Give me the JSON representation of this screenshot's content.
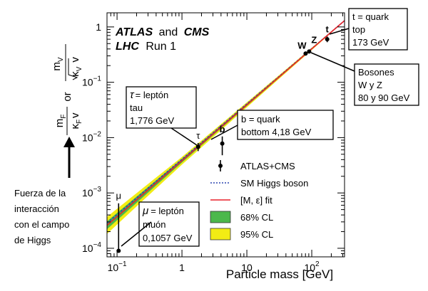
{
  "chart_data": {
    "type": "scatter",
    "xscale": "log",
    "yscale": "log",
    "xlim": [
      0.07,
      320
    ],
    "ylim": [
      7e-05,
      1.8
    ],
    "xlabel": "Particle mass [GeV]",
    "ylabel_parts": {
      "left_num": "m",
      "left_num_sub": "F",
      "left_den": "κ",
      "left_den_sub": "F",
      "left_den_rest": "v",
      "or": "or",
      "right_num": "m",
      "right_num_sub": "V",
      "right_den_root": "κ",
      "right_den_root_sub": "V",
      "right_den_rest": "v"
    },
    "x_ticks": [
      {
        "value": 0.1,
        "label_base": "10",
        "label_exp": "−1"
      },
      {
        "value": 1,
        "label_base": "1",
        "label_exp": ""
      },
      {
        "value": 10,
        "label_base": "10",
        "label_exp": ""
      },
      {
        "value": 100,
        "label_base": "10",
        "label_exp": "2"
      }
    ],
    "y_ticks": [
      {
        "value": 0.0001,
        "label_base": "10",
        "label_exp": "−4"
      },
      {
        "value": 0.001,
        "label_base": "10",
        "label_exp": "−3"
      },
      {
        "value": 0.01,
        "label_base": "10",
        "label_exp": "−2"
      },
      {
        "value": 0.1,
        "label_base": "10",
        "label_exp": "−1"
      },
      {
        "value": 1,
        "label_base": "1",
        "label_exp": ""
      }
    ],
    "experiment": {
      "line1_bold": "ATLAS",
      "line1_and": "and",
      "line1_bold2": "CMS",
      "line2_bold": "LHC",
      "line2_rest": "Run 1"
    },
    "points": [
      {
        "label": "μ",
        "x": 0.1057,
        "y": 9e-05,
        "ylo": 9e-05,
        "yhi": 0.00065
      },
      {
        "label": "τ",
        "x": 1.776,
        "y": 0.0068,
        "ylo": 0.0057,
        "yhi": 0.008
      },
      {
        "label": "b",
        "x": 4.18,
        "y": 0.0078,
        "ylo": 0.0048,
        "yhi": 0.0105
      },
      {
        "label": "W",
        "x": 80.4,
        "y": 0.33,
        "ylo": 0.31,
        "yhi": 0.36
      },
      {
        "label": "Z",
        "x": 91.2,
        "y": 0.36,
        "ylo": 0.34,
        "yhi": 0.38
      },
      {
        "label": "t",
        "x": 173,
        "y": 0.6,
        "ylo": 0.53,
        "yhi": 0.67
      }
    ],
    "sm_line": {
      "x": [
        0.07,
        320
      ],
      "y": [
        0.000285,
        1.3
      ]
    },
    "fit_line": {
      "x": [
        0.07,
        320
      ],
      "y": [
        0.00026,
        1.3
      ]
    },
    "band68": {
      "x": [
        0.07,
        1.0,
        320
      ],
      "ylo_factor": [
        0.85,
        0.93,
        0.99
      ],
      "yhi_factor": [
        1.18,
        1.08,
        1.01
      ]
    },
    "band95": {
      "x": [
        0.07,
        1.0,
        320
      ],
      "ylo_factor": [
        0.7,
        0.85,
        0.98
      ],
      "yhi_factor": [
        1.42,
        1.17,
        1.02
      ]
    },
    "legend": [
      {
        "kind": "errorpoint",
        "label": "ATLAS+CMS"
      },
      {
        "kind": "dotted",
        "label": "SM Higgs boson",
        "color": "#2b45b0"
      },
      {
        "kind": "line",
        "label": "[M, ε] fit",
        "color": "#e8202a"
      },
      {
        "kind": "box",
        "label": "68% CL",
        "color": "#4cb84c"
      },
      {
        "kind": "box",
        "label": "95% CL",
        "color": "#f2ec14"
      }
    ],
    "colors": {
      "band68": "#4cb84c",
      "band95": "#f2ec14",
      "fit": "#e8202a",
      "sm": "#2b45b0"
    }
  },
  "annotations": {
    "tau": {
      "lines": [
        "= leptón",
        "tau",
        "1,776 GeV"
      ],
      "symbol": "τ"
    },
    "b": {
      "lines": [
        "b = quark",
        "bottom 4,18 GeV"
      ]
    },
    "mu": {
      "lines": [
        "= leptón",
        "muón",
        "0,1057 GeV"
      ],
      "symbol": "μ"
    },
    "t": {
      "lines": [
        "t = quark",
        "top",
        "173 GeV"
      ]
    },
    "wz": {
      "lines": [
        "Bosones",
        "W y  Z",
        "80 y 90 GeV"
      ]
    },
    "force": {
      "lines": [
        "Fuerza de la",
        "interacción",
        "con el campo",
        "de Higgs"
      ]
    }
  }
}
